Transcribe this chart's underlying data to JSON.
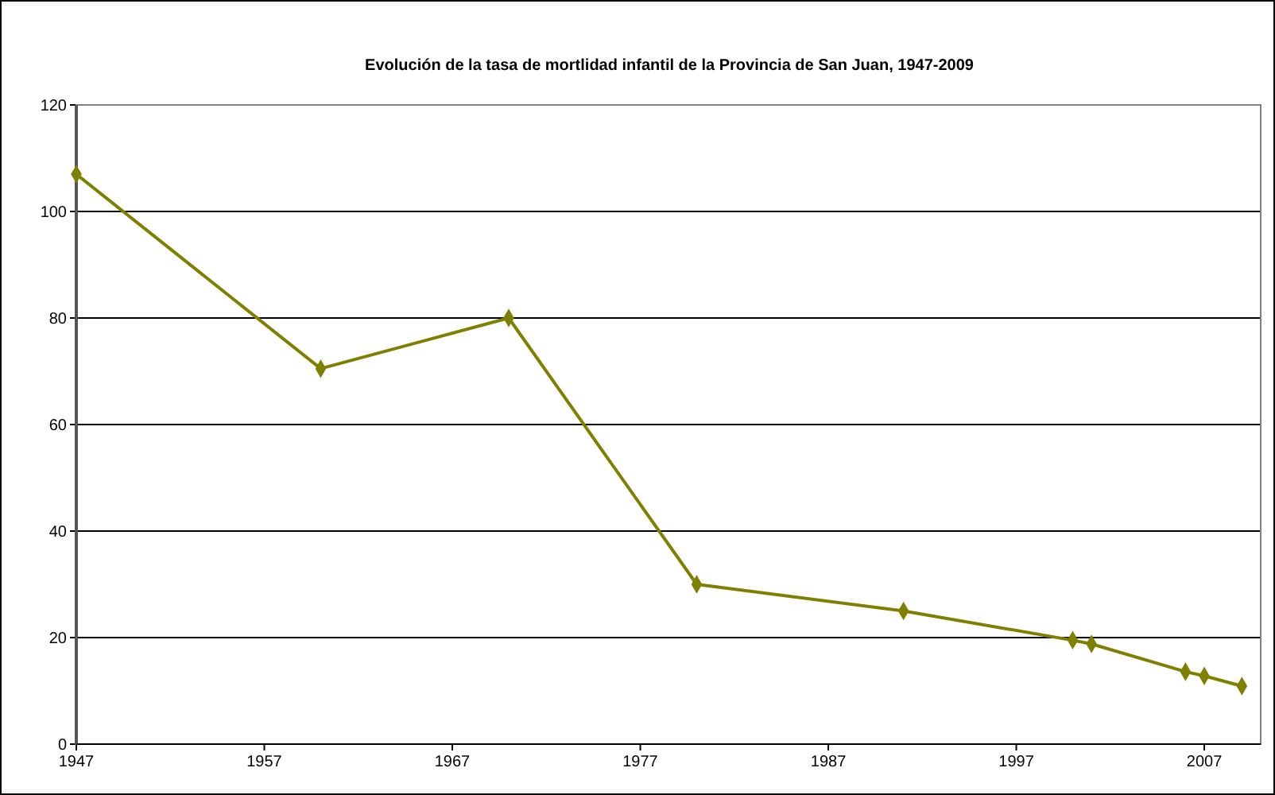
{
  "chart_data": {
    "type": "line",
    "title": "Evolución de la tasa de mortlidad infantil de la Provincia de San Juan, 1947-2009",
    "x": [
      1947,
      1960,
      1970,
      1980,
      1991,
      2000,
      2001,
      2006,
      2007,
      2009
    ],
    "series": [
      {
        "color": "#808000",
        "values": [
          107,
          70.5,
          80,
          30,
          25,
          19.5,
          18.8,
          13.6,
          12.8,
          10.9
        ]
      }
    ],
    "xlim": [
      1947,
      2010
    ],
    "xticks": [
      1947,
      1957,
      1967,
      1977,
      1987,
      1997,
      2007
    ],
    "ylim": [
      0,
      120
    ],
    "yticks": [
      0,
      20,
      40,
      60,
      80,
      100,
      120
    ],
    "grid": "y",
    "marker": "diamond",
    "line_style": "solid"
  }
}
